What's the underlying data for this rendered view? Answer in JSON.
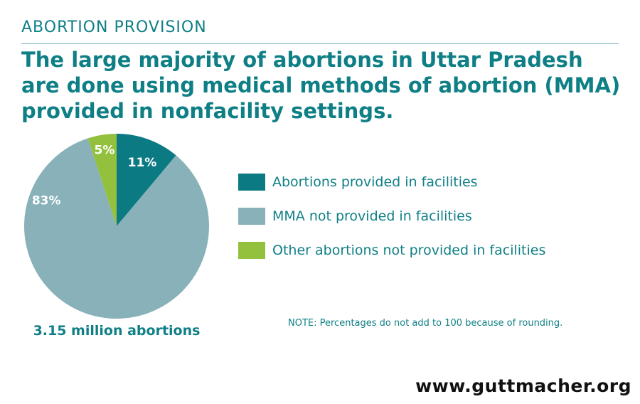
{
  "header": {
    "kicker": "ABORTION PROVISION",
    "headline": "The large majority of abortions in Uttar Pradesh are done using medical methods of abortion (MMA) provided in nonfacility settings."
  },
  "chart_data": {
    "type": "pie",
    "caption": "3.15 million abortions",
    "slices": [
      {
        "label": "Abortions provided in facilities",
        "value": 11,
        "value_label": "11%",
        "color": "#0b7a83"
      },
      {
        "label": "MMA not provided in facilities",
        "value": 83,
        "value_label": "83%",
        "color": "#88b1b9"
      },
      {
        "label": "Other abortions not provided in facilities",
        "value": 5,
        "value_label": "5%",
        "color": "#93c13e"
      }
    ],
    "legend_position": "right",
    "note": "NOTE: Percentages do not add to 100 because of rounding."
  },
  "footer": {
    "website": "www.guttmacher.org"
  }
}
